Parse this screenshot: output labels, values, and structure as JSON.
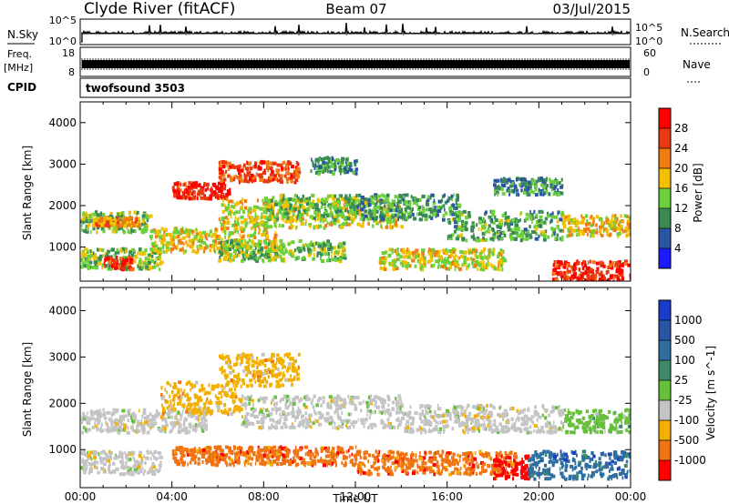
{
  "header": {
    "station": "Clyde River (fitACF)",
    "beam": "Beam 07",
    "date": "03/Jul/2015"
  },
  "status_panels": {
    "nsky_label": "N.Sky",
    "nsky_ticks": [
      "10^5",
      "10^0"
    ],
    "nsearch_label": "N.Search",
    "nsearch_ticks": [
      "10^5",
      "10^0"
    ],
    "freq_label": "Freq.",
    "freq_unit": "[MHz]",
    "freq_ticks": [
      "18",
      "8"
    ],
    "nave_label": "Nave",
    "nave_ticks": [
      "60",
      "0"
    ],
    "cpid_label": "CPID",
    "cpid_value": "twofsound 3503"
  },
  "chart_data": [
    {
      "type": "heatmap",
      "parameter": "power",
      "xlabel": "",
      "ylabel": "Slant Range [km]",
      "xlim": [
        0,
        24
      ],
      "ylim": [
        180,
        4500
      ],
      "x_ticks": [
        "00:00",
        "04:00",
        "08:00",
        "12:00",
        "16:00",
        "20:00",
        "00:00"
      ],
      "y_ticks": [
        1000,
        2000,
        3000,
        4000
      ],
      "colorbar_label": "Power [dB]",
      "colorbar_ticks": [
        "4",
        "8",
        "12",
        "16",
        "20",
        "24",
        "28"
      ],
      "colorbar_range": [
        0,
        32
      ],
      "colors": [
        "#1a1aff",
        "#2a55a5",
        "#3a8a55",
        "#6cd03c",
        "#f3c000",
        "#f07c14",
        "#e83a10",
        "#ff0000"
      ],
      "regions": [
        {
          "t": [
            0.0,
            3.0
          ],
          "r": [
            1400,
            1900
          ],
          "v": 13
        },
        {
          "t": [
            0.5,
            2.5
          ],
          "r": [
            1550,
            1750
          ],
          "v": 21
        },
        {
          "t": [
            0.0,
            3.5
          ],
          "r": [
            500,
            1000
          ],
          "v": 14
        },
        {
          "t": [
            1.0,
            2.2
          ],
          "r": [
            500,
            800
          ],
          "v": 27
        },
        {
          "t": [
            3.0,
            8.5
          ],
          "r": [
            900,
            1500
          ],
          "v": 18
        },
        {
          "t": [
            4.0,
            6.5
          ],
          "r": [
            2200,
            2600
          ],
          "v": 28
        },
        {
          "t": [
            6.0,
            9.5
          ],
          "r": [
            2600,
            3100
          ],
          "v": 25
        },
        {
          "t": [
            6.0,
            14.0
          ],
          "r": [
            1500,
            2200
          ],
          "v": 17
        },
        {
          "t": [
            8.0,
            12.0
          ],
          "r": [
            1700,
            2300
          ],
          "v": 13
        },
        {
          "t": [
            12.0,
            16.5
          ],
          "r": [
            1700,
            2300
          ],
          "v": 11
        },
        {
          "t": [
            6.0,
            11.5
          ],
          "r": [
            700,
            1200
          ],
          "v": 14
        },
        {
          "t": [
            13.0,
            18.5
          ],
          "r": [
            500,
            1000
          ],
          "v": 17
        },
        {
          "t": [
            16.0,
            21.0
          ],
          "r": [
            1200,
            1900
          ],
          "v": 12
        },
        {
          "t": [
            18.0,
            21.0
          ],
          "r": [
            2300,
            2700
          ],
          "v": 9
        },
        {
          "t": [
            21.0,
            24.0
          ],
          "r": [
            1300,
            1800
          ],
          "v": 19
        },
        {
          "t": [
            20.5,
            24.0
          ],
          "r": [
            200,
            700
          ],
          "v": 28
        },
        {
          "t": [
            10.0,
            12.0
          ],
          "r": [
            2800,
            3200
          ],
          "v": 10
        }
      ]
    },
    {
      "type": "heatmap",
      "parameter": "velocity",
      "xlabel": "Time UT",
      "ylabel": "Slant Range [km]",
      "xlim": [
        0,
        24
      ],
      "ylim": [
        180,
        4500
      ],
      "x_ticks": [
        "00:00",
        "04:00",
        "08:00",
        "12:00",
        "16:00",
        "20:00",
        "00:00"
      ],
      "y_ticks": [
        1000,
        2000,
        3000,
        4000
      ],
      "colorbar_label": "Velocity [m s^-1]",
      "colorbar_ticks": [
        "1000",
        "500",
        "100",
        "25",
        "-25",
        "-100",
        "-500",
        "-1000"
      ],
      "colors": [
        "#1a3cc8",
        "#2e6ea0",
        "#3d8a6a",
        "#66c03a",
        "#c4c4c4",
        "#f4b000",
        "#f07412",
        "#ff0000"
      ],
      "regions": [
        {
          "t": [
            0.0,
            5.5
          ],
          "r": [
            1400,
            1900
          ],
          "class": "-25 to 25"
        },
        {
          "t": [
            0.0,
            3.5
          ],
          "r": [
            500,
            1000
          ],
          "class": "-25 to 25"
        },
        {
          "t": [
            3.5,
            7.0
          ],
          "r": [
            1800,
            2500
          ],
          "class": "-100 to -25"
        },
        {
          "t": [
            6.0,
            9.5
          ],
          "r": [
            2400,
            3100
          ],
          "class": "-100 to -25"
        },
        {
          "t": [
            7.0,
            14.0
          ],
          "r": [
            1500,
            2200
          ],
          "class": "-25 to 25"
        },
        {
          "t": [
            4.0,
            12.0
          ],
          "r": [
            700,
            1100
          ],
          "class": "-500 to -100"
        },
        {
          "t": [
            12.0,
            19.0
          ],
          "r": [
            500,
            1000
          ],
          "class": "-500 to -100"
        },
        {
          "t": [
            18.0,
            19.5
          ],
          "r": [
            400,
            900
          ],
          "class": "-1000 to -500"
        },
        {
          "t": [
            19.5,
            24.0
          ],
          "r": [
            400,
            1000
          ],
          "class": "100 to 500"
        },
        {
          "t": [
            21.0,
            24.0
          ],
          "r": [
            1400,
            1900
          ],
          "class": "25 to 100"
        },
        {
          "t": [
            14.0,
            21.0
          ],
          "r": [
            1400,
            2000
          ],
          "class": "-25 to 25"
        }
      ]
    }
  ]
}
